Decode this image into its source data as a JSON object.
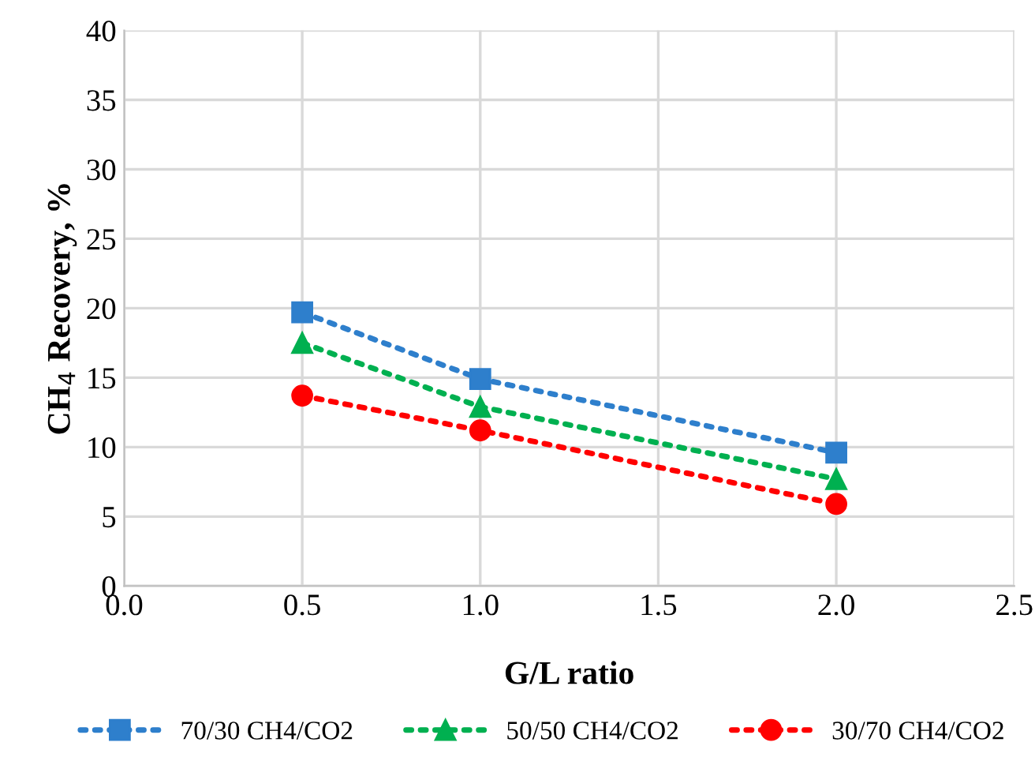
{
  "chart_data": {
    "type": "line",
    "xlabel": "G/L ratio",
    "ylabel": "CH$_{4}$ Recovery, %",
    "x": [
      0.5,
      1.0,
      2.0
    ],
    "series": [
      {
        "name": "70/30 CH4/CO2",
        "color": "#2e7fcc",
        "marker": "square",
        "values": [
          19.7,
          14.9,
          9.6
        ]
      },
      {
        "name": "50/50 CH4/CO2",
        "color": "#00b050",
        "marker": "triangle",
        "values": [
          17.5,
          12.9,
          7.7
        ]
      },
      {
        "name": "30/70 CH4/CO2",
        "color": "#ff0000",
        "marker": "circle",
        "values": [
          13.7,
          11.2,
          5.9
        ]
      }
    ],
    "xlim": [
      0.0,
      2.5
    ],
    "xticks": [
      {
        "value": 0,
        "label": "0.0"
      },
      {
        "value": 0.5,
        "label": "0.5"
      },
      {
        "value": 1.0,
        "label": "1.0"
      },
      {
        "value": 1.5,
        "label": "1.5"
      },
      {
        "value": 2.0,
        "label": "2.0"
      },
      {
        "value": 2.5,
        "label": "2.5"
      }
    ],
    "ylim": [
      0,
      40
    ],
    "yticks": [
      0,
      5,
      10,
      15,
      20,
      25,
      30,
      35,
      40
    ],
    "grid": true,
    "legend": "bottom",
    "line_style": "dotted"
  }
}
